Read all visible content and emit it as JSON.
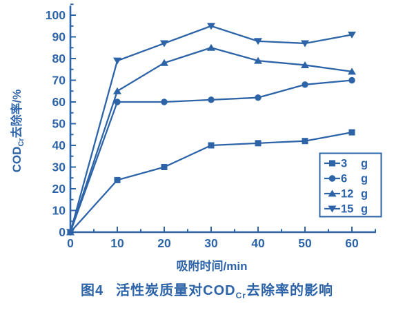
{
  "figure": {
    "caption_prefix": "图4",
    "caption_pre": "活性炭质量对COD",
    "caption_sub": "Cr",
    "caption_post": "去除率的影响"
  },
  "chart_data": {
    "type": "line",
    "title": "",
    "x": [
      0,
      10,
      20,
      30,
      40,
      50,
      60
    ],
    "series": [
      {
        "name": "3 g",
        "label": "3",
        "unit": "g",
        "marker": "square",
        "values": [
          0,
          24,
          30,
          40,
          41,
          42,
          46
        ]
      },
      {
        "name": "6 g",
        "label": "6",
        "unit": "g",
        "marker": "circle",
        "values": [
          0,
          60,
          60,
          61,
          62,
          68,
          70
        ]
      },
      {
        "name": "12 g",
        "label": "12",
        "unit": "g",
        "marker": "triangle-up",
        "values": [
          0,
          65,
          78,
          85,
          79,
          77,
          74
        ]
      },
      {
        "name": "15 g",
        "label": "15",
        "unit": "g",
        "marker": "triangle-down",
        "values": [
          0,
          79,
          87,
          95,
          88,
          87,
          91
        ]
      }
    ],
    "xlabel": "吸附时间/min",
    "ylabel_pre": "COD",
    "ylabel_sub": "Cr",
    "ylabel_post": "去除率/%",
    "xlim": [
      0,
      65
    ],
    "ylim": [
      0,
      105
    ],
    "x_major_ticks": [
      0,
      10,
      20,
      30,
      40,
      50,
      60
    ],
    "y_major_ticks": [
      0,
      10,
      20,
      30,
      40,
      50,
      60,
      70,
      80,
      90,
      100
    ],
    "minor_tick_step": 5,
    "grid": false,
    "legend_position": "lower-right",
    "accent_color": "#2d64a8",
    "background_color": "#ffffff"
  }
}
